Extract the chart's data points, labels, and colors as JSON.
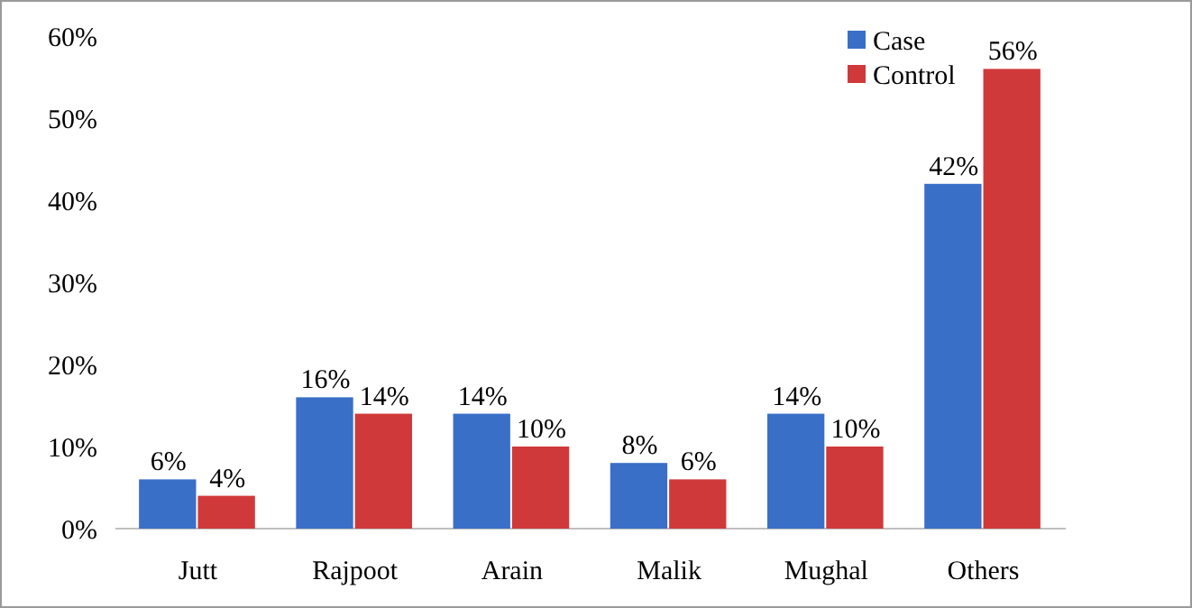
{
  "chart_data": {
    "type": "bar",
    "categories": [
      "Jutt",
      "Rajpoot",
      "Arain",
      "Malik",
      "Mughal",
      "Others"
    ],
    "series": [
      {
        "name": "Case",
        "color": "#3a6fc8",
        "values": [
          6,
          16,
          14,
          8,
          14,
          42
        ],
        "value_labels": [
          "6%",
          "16%",
          "14%",
          "8%",
          "14%",
          "42%"
        ]
      },
      {
        "name": "Control",
        "color": "#d0393a",
        "values": [
          4,
          14,
          10,
          6,
          10,
          56
        ],
        "value_labels": [
          "4%",
          "14%",
          "10%",
          "6%",
          "10%",
          "56%"
        ]
      }
    ],
    "ylim": [
      0,
      60
    ],
    "yticks": [
      {
        "value": 0,
        "label": "0%"
      },
      {
        "value": 10,
        "label": "10%"
      },
      {
        "value": 20,
        "label": "20%"
      },
      {
        "value": 30,
        "label": "30%"
      },
      {
        "value": 40,
        "label": "40%"
      },
      {
        "value": 50,
        "label": "50%"
      },
      {
        "value": 60,
        "label": "60%"
      }
    ],
    "grid": false,
    "legend": "top right"
  }
}
